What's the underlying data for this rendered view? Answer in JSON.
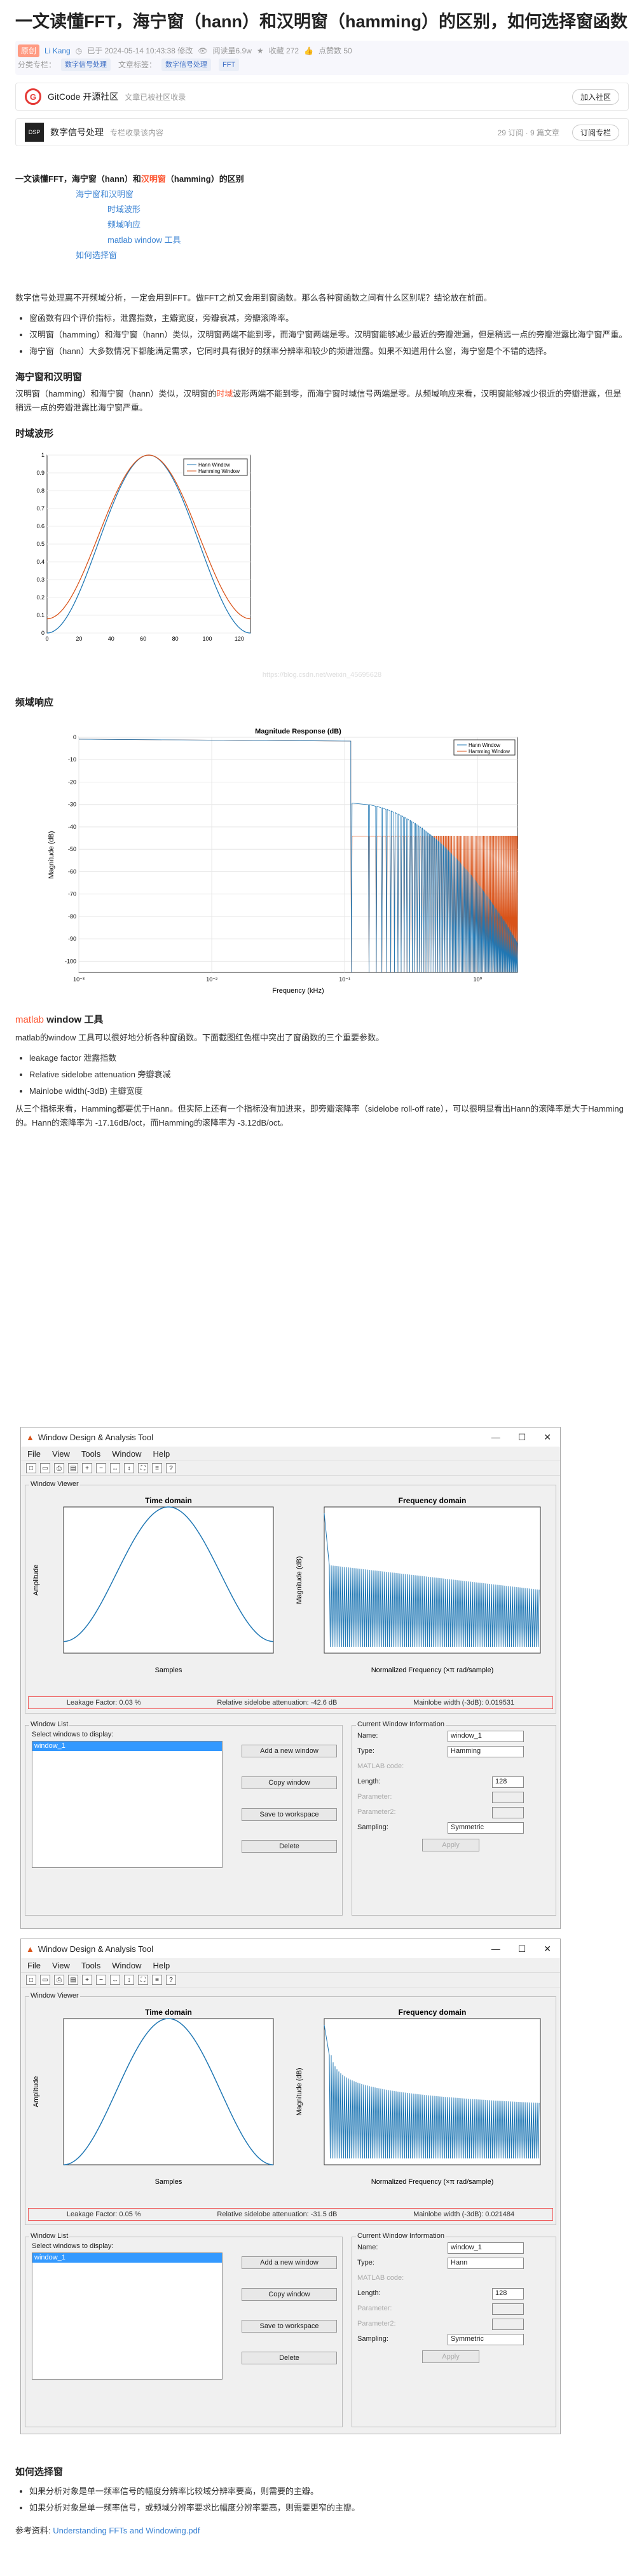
{
  "article": {
    "title": "一文读懂FFT，海宁窗（hann）和汉明窗（hamming）的区别，如何选择窗函数",
    "badge": "原创",
    "author": "Li Kang",
    "date": "已于 2024-05-14 10:43:38 修改",
    "views": "阅读量6.9w",
    "favorites": "收藏 272",
    "likes": "点赞数 50",
    "category_label": "分类专栏：",
    "category": "数字信号处理",
    "tags_label": "文章标签：",
    "tags": [
      "数字信号处理",
      "FFT"
    ]
  },
  "community": {
    "name": "GitCode 开源社区",
    "desc": "文章已被社区收录",
    "btn": "加入社区"
  },
  "column": {
    "name": "数字信号处理",
    "desc": "专栏收录该内容",
    "stats": "29 订阅 · 9 篇文章",
    "btn": "订阅专栏"
  },
  "toc": {
    "title": "一文读懂FFT，海宁窗（hann）和",
    "title_hl": "汉明窗",
    "title_end": "（hamming）的区别",
    "items": [
      "海宁窗和汉明窗",
      "时域波形",
      "频域响应",
      "matlab window 工具",
      "如何选择窗"
    ]
  },
  "body": {
    "p1": "数字信号处理离不开频域分析，一定会用到FFT。做FFT之前又会用到窗函数。那么各种窗函数之间有什么区别呢？结论放在前面。",
    "bullets1": [
      "窗函数有四个评价指标，泄露指数，主瓣宽度，旁瓣衰减，旁瓣滚降率。",
      "汉明窗（hamming）和海宁窗（hann）类似，汉明窗两端不能到零，而海宁窗两端是零。汉明窗能够减少最近的旁瓣泄漏，但是稍远一点的旁瓣泄露比海宁窗严重。",
      "海宁窗（hann）大多数情况下都能满足需求，它同时具有很好的频率分辨率和较少的频谱泄露。如果不知道用什么窗，海宁窗是个不错的选择。"
    ],
    "h_windows": "海宁窗和汉明窗",
    "p2a": "汉明窗（hamming）和海宁窗（hann）类似，汉明窗的",
    "p2hl": "时域",
    "p2b": "波形两端不能到零，而海宁窗时域信号两端是零。从频域响应来看，汉明窗能够减少很近的旁瓣泄露，但是稍远一点的旁瓣泄露比海宁窗严重。",
    "h_time": "时域波形",
    "h_freq": "频域响应",
    "h_matlab_hl": "matlab",
    "h_matlab": " window 工具",
    "p3": "matlab的window 工具可以很好地分析各种窗函数。下面截图红色框中突出了窗函数的三个重要参数。",
    "bullets2": [
      "leakage factor 泄露指数",
      "Relative sidelobe attenuation 旁瓣衰减",
      "Mainlobe width(-3dB) 主瓣宽度"
    ],
    "p4": "从三个指标来看，Hamming都要优于Hann。但实际上还有一个指标没有加进来，即旁瓣滚降率（sidelobe roll-off rate），可以很明显看出Hann的滚降率是大于Hamming的。Hann的滚降率为 -17.16dB/oct，而Hamming的滚降率为 -3.12dB/oct。",
    "h_choose": "如何选择窗",
    "bullets3": [
      "如果分析对象是单一频率信号的幅度分辨率比较域分辨率要高，则需要的主瓣。",
      "如果分析对象是单一频率信号，或频域分辨率要求比幅度分辨率要高，则需要更窄的主瓣。"
    ],
    "ref_label": "参考资料: ",
    "ref_link": "Understanding FFTs and Windowing.pdf",
    "watermark": "https://blog.csdn.net/weixin_45695628"
  },
  "time_chart": {
    "legend": [
      "Hann Window",
      "Hamming Window"
    ],
    "xticks": [
      "0",
      "20",
      "40",
      "60",
      "80",
      "100",
      "120"
    ],
    "yticks": [
      "0",
      "0.1",
      "0.2",
      "0.3",
      "0.4",
      "0.5",
      "0.6",
      "0.7",
      "0.8",
      "0.9",
      "1"
    ],
    "colors": [
      "#1f77b4",
      "#d95319"
    ]
  },
  "freq_chart": {
    "title": "Magnitude Response (dB)",
    "xlabel": "Frequency (kHz)",
    "ylabel": "Magnitude (dB)",
    "legend": [
      "Hann Window",
      "Hamming Window"
    ],
    "yticks": [
      "0",
      "-10",
      "-20",
      "-30",
      "-40",
      "-50",
      "-60",
      "-70",
      "-80",
      "-90",
      "-100"
    ],
    "xticks": [
      "10⁻³",
      "10⁻²",
      "10⁻¹",
      "10⁰"
    ]
  },
  "tool1": {
    "title": "Window Design & Analysis Tool",
    "menu": [
      "File",
      "View",
      "Tools",
      "Window",
      "Help"
    ],
    "viewer": "Window Viewer",
    "td": "Time domain",
    "fd": "Frequency domain",
    "samples": "Samples",
    "amp": "Amplitude",
    "mag": "Magnitude (dB)",
    "nf": "Normalized Frequency (×π rad/sample)",
    "leak": "Leakage Factor: 0.03 %",
    "rsa": "Relative sidelobe attenuation: -42.6 dB",
    "mlw": "Mainlobe width (-3dB): 0.019531",
    "wlist": "Window List",
    "selp": "Select windows to display:",
    "item": "window_1",
    "btns": [
      "Add a new window",
      "Copy window",
      "Save to workspace",
      "Delete"
    ],
    "cwi": "Current Window Information",
    "name_l": "Name:",
    "name_v": "window_1",
    "type_l": "Type:",
    "type_v": "Hamming",
    "mcode": "MATLAB code:",
    "len_l": "Length:",
    "len_v": "128",
    "p1": "Parameter:",
    "p2": "Parameter2:",
    "samp_l": "Sampling:",
    "samp_v": "Symmetric",
    "apply": "Apply"
  },
  "tool2": {
    "leak": "Leakage Factor: 0.05 %",
    "rsa": "Relative sidelobe attenuation: -31.5 dB",
    "mlw": "Mainlobe width (-3dB): 0.021484",
    "type_v": "Hann"
  }
}
